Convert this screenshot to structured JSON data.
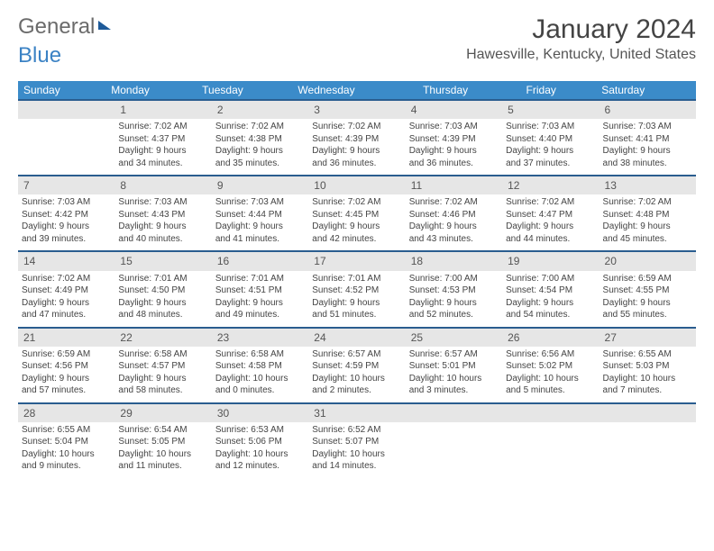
{
  "logo": {
    "part1": "General",
    "part2": "Blue"
  },
  "title": "January 2024",
  "location": "Hawesville, Kentucky, United States",
  "dow": [
    "Sunday",
    "Monday",
    "Tuesday",
    "Wednesday",
    "Thursday",
    "Friday",
    "Saturday"
  ],
  "colors": {
    "header_bg": "#3b8bc9",
    "header_text": "#ffffff",
    "daynum_bg": "#e6e6e6",
    "rule": "#2a5d8f",
    "logo_gray": "#6b6b6b",
    "logo_blue": "#3b82c4"
  },
  "weeks": [
    [
      null,
      {
        "n": "1",
        "sr": "Sunrise: 7:02 AM",
        "ss": "Sunset: 4:37 PM",
        "d1": "Daylight: 9 hours",
        "d2": "and 34 minutes."
      },
      {
        "n": "2",
        "sr": "Sunrise: 7:02 AM",
        "ss": "Sunset: 4:38 PM",
        "d1": "Daylight: 9 hours",
        "d2": "and 35 minutes."
      },
      {
        "n": "3",
        "sr": "Sunrise: 7:02 AM",
        "ss": "Sunset: 4:39 PM",
        "d1": "Daylight: 9 hours",
        "d2": "and 36 minutes."
      },
      {
        "n": "4",
        "sr": "Sunrise: 7:03 AM",
        "ss": "Sunset: 4:39 PM",
        "d1": "Daylight: 9 hours",
        "d2": "and 36 minutes."
      },
      {
        "n": "5",
        "sr": "Sunrise: 7:03 AM",
        "ss": "Sunset: 4:40 PM",
        "d1": "Daylight: 9 hours",
        "d2": "and 37 minutes."
      },
      {
        "n": "6",
        "sr": "Sunrise: 7:03 AM",
        "ss": "Sunset: 4:41 PM",
        "d1": "Daylight: 9 hours",
        "d2": "and 38 minutes."
      }
    ],
    [
      {
        "n": "7",
        "sr": "Sunrise: 7:03 AM",
        "ss": "Sunset: 4:42 PM",
        "d1": "Daylight: 9 hours",
        "d2": "and 39 minutes."
      },
      {
        "n": "8",
        "sr": "Sunrise: 7:03 AM",
        "ss": "Sunset: 4:43 PM",
        "d1": "Daylight: 9 hours",
        "d2": "and 40 minutes."
      },
      {
        "n": "9",
        "sr": "Sunrise: 7:03 AM",
        "ss": "Sunset: 4:44 PM",
        "d1": "Daylight: 9 hours",
        "d2": "and 41 minutes."
      },
      {
        "n": "10",
        "sr": "Sunrise: 7:02 AM",
        "ss": "Sunset: 4:45 PM",
        "d1": "Daylight: 9 hours",
        "d2": "and 42 minutes."
      },
      {
        "n": "11",
        "sr": "Sunrise: 7:02 AM",
        "ss": "Sunset: 4:46 PM",
        "d1": "Daylight: 9 hours",
        "d2": "and 43 minutes."
      },
      {
        "n": "12",
        "sr": "Sunrise: 7:02 AM",
        "ss": "Sunset: 4:47 PM",
        "d1": "Daylight: 9 hours",
        "d2": "and 44 minutes."
      },
      {
        "n": "13",
        "sr": "Sunrise: 7:02 AM",
        "ss": "Sunset: 4:48 PM",
        "d1": "Daylight: 9 hours",
        "d2": "and 45 minutes."
      }
    ],
    [
      {
        "n": "14",
        "sr": "Sunrise: 7:02 AM",
        "ss": "Sunset: 4:49 PM",
        "d1": "Daylight: 9 hours",
        "d2": "and 47 minutes."
      },
      {
        "n": "15",
        "sr": "Sunrise: 7:01 AM",
        "ss": "Sunset: 4:50 PM",
        "d1": "Daylight: 9 hours",
        "d2": "and 48 minutes."
      },
      {
        "n": "16",
        "sr": "Sunrise: 7:01 AM",
        "ss": "Sunset: 4:51 PM",
        "d1": "Daylight: 9 hours",
        "d2": "and 49 minutes."
      },
      {
        "n": "17",
        "sr": "Sunrise: 7:01 AM",
        "ss": "Sunset: 4:52 PM",
        "d1": "Daylight: 9 hours",
        "d2": "and 51 minutes."
      },
      {
        "n": "18",
        "sr": "Sunrise: 7:00 AM",
        "ss": "Sunset: 4:53 PM",
        "d1": "Daylight: 9 hours",
        "d2": "and 52 minutes."
      },
      {
        "n": "19",
        "sr": "Sunrise: 7:00 AM",
        "ss": "Sunset: 4:54 PM",
        "d1": "Daylight: 9 hours",
        "d2": "and 54 minutes."
      },
      {
        "n": "20",
        "sr": "Sunrise: 6:59 AM",
        "ss": "Sunset: 4:55 PM",
        "d1": "Daylight: 9 hours",
        "d2": "and 55 minutes."
      }
    ],
    [
      {
        "n": "21",
        "sr": "Sunrise: 6:59 AM",
        "ss": "Sunset: 4:56 PM",
        "d1": "Daylight: 9 hours",
        "d2": "and 57 minutes."
      },
      {
        "n": "22",
        "sr": "Sunrise: 6:58 AM",
        "ss": "Sunset: 4:57 PM",
        "d1": "Daylight: 9 hours",
        "d2": "and 58 minutes."
      },
      {
        "n": "23",
        "sr": "Sunrise: 6:58 AM",
        "ss": "Sunset: 4:58 PM",
        "d1": "Daylight: 10 hours",
        "d2": "and 0 minutes."
      },
      {
        "n": "24",
        "sr": "Sunrise: 6:57 AM",
        "ss": "Sunset: 4:59 PM",
        "d1": "Daylight: 10 hours",
        "d2": "and 2 minutes."
      },
      {
        "n": "25",
        "sr": "Sunrise: 6:57 AM",
        "ss": "Sunset: 5:01 PM",
        "d1": "Daylight: 10 hours",
        "d2": "and 3 minutes."
      },
      {
        "n": "26",
        "sr": "Sunrise: 6:56 AM",
        "ss": "Sunset: 5:02 PM",
        "d1": "Daylight: 10 hours",
        "d2": "and 5 minutes."
      },
      {
        "n": "27",
        "sr": "Sunrise: 6:55 AM",
        "ss": "Sunset: 5:03 PM",
        "d1": "Daylight: 10 hours",
        "d2": "and 7 minutes."
      }
    ],
    [
      {
        "n": "28",
        "sr": "Sunrise: 6:55 AM",
        "ss": "Sunset: 5:04 PM",
        "d1": "Daylight: 10 hours",
        "d2": "and 9 minutes."
      },
      {
        "n": "29",
        "sr": "Sunrise: 6:54 AM",
        "ss": "Sunset: 5:05 PM",
        "d1": "Daylight: 10 hours",
        "d2": "and 11 minutes."
      },
      {
        "n": "30",
        "sr": "Sunrise: 6:53 AM",
        "ss": "Sunset: 5:06 PM",
        "d1": "Daylight: 10 hours",
        "d2": "and 12 minutes."
      },
      {
        "n": "31",
        "sr": "Sunrise: 6:52 AM",
        "ss": "Sunset: 5:07 PM",
        "d1": "Daylight: 10 hours",
        "d2": "and 14 minutes."
      },
      null,
      null,
      null
    ]
  ]
}
